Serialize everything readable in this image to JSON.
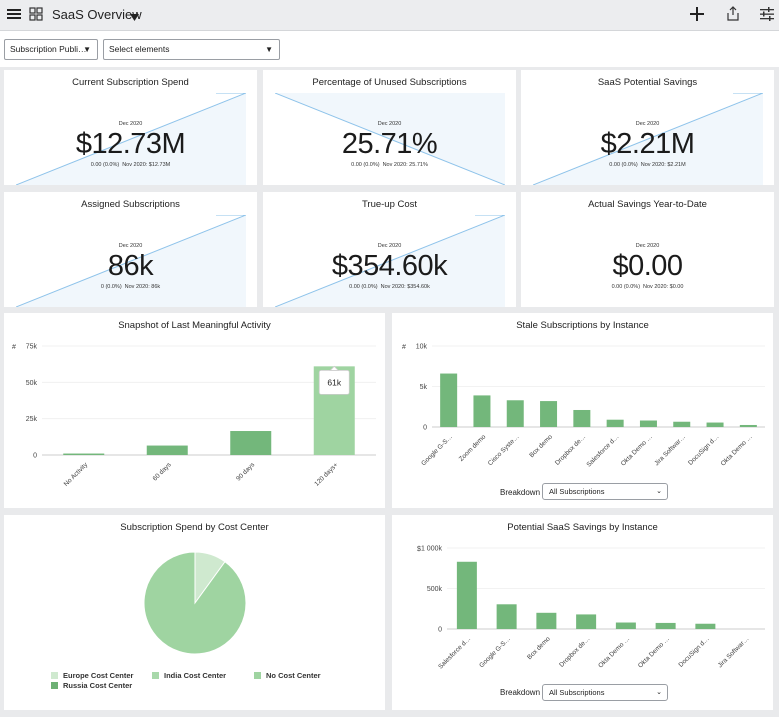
{
  "header": {
    "title": "SaaS Overview",
    "icons": [
      "hamburger-icon",
      "grid-icon",
      "chevron-down-icon",
      "plus-icon",
      "share-icon",
      "filter-sliders-icon"
    ]
  },
  "filters": {
    "subscription": {
      "value": "Subscription Publi…"
    },
    "elements": {
      "value": "Select elements"
    }
  },
  "kpis": [
    {
      "title": "Current Subscription Spend",
      "period": "Dec 2020",
      "value": "$12.73M",
      "delta": "0.00 (0.0%)",
      "prev": "Nov 2020: $12.73M"
    },
    {
      "title": "Percentage of Unused Subscriptions",
      "period": "Dec 2020",
      "value": "25.71%",
      "delta": "0.00 (0.0%)",
      "prev": "Nov 2020: 25.71%"
    },
    {
      "title": "SaaS Potential Savings",
      "period": "Dec 2020",
      "value": "$2.21M",
      "delta": "0.00 (0.0%)",
      "prev": "Nov 2020: $2.21M"
    },
    {
      "title": "Assigned Subscriptions",
      "period": "Dec 2020",
      "value": "86k",
      "delta": "0 (0.0%)",
      "prev": "Nov 2020: 86k"
    },
    {
      "title": "True-up Cost",
      "period": "Dec 2020",
      "value": "$354.60k",
      "delta": "0.00 (0.0%)",
      "prev": "Nov 2020: $354.60k"
    },
    {
      "title": "Actual Savings Year-to-Date",
      "period": "Dec 2020",
      "value": "$0.00",
      "delta": "0.00 (0.0%)",
      "prev": "Nov 2020: $0.00"
    }
  ],
  "charts": {
    "activity": {
      "title": "Snapshot of Last Meaningful Activity",
      "unit": "#",
      "tooltip": "61k"
    },
    "stale": {
      "title": "Stale Subscriptions by Instance",
      "unit": "#",
      "breakdown_label": "Breakdown",
      "breakdown_value": "All Subscriptions"
    },
    "cost_center": {
      "title": "Subscription Spend by Cost Center"
    },
    "savings": {
      "title": "Potential SaaS Savings by Instance",
      "unit": "$",
      "breakdown_label": "Breakdown",
      "breakdown_value": "All Subscriptions"
    }
  },
  "chart_data": [
    {
      "type": "bar",
      "title": "Snapshot of Last Meaningful Activity",
      "categories": [
        "No Activity",
        "60 days",
        "90 days",
        "120 days+"
      ],
      "values": [
        1000,
        6500,
        16500,
        61000
      ],
      "ylim": [
        0,
        75000
      ],
      "yticks": [
        "0",
        "25k",
        "50k",
        "75k"
      ],
      "ylabel": "#",
      "highlight_index": 3,
      "colors": [
        "#73b77b",
        "#73b77b",
        "#73b77b",
        "#9fd4a1"
      ]
    },
    {
      "type": "bar",
      "title": "Stale Subscriptions by Instance",
      "categories": [
        "Google G-S…",
        "Zoom demo",
        "Cisco Syste…",
        "Box demo",
        "Dropbox de…",
        "Salesforce d…",
        "Okta Demo …",
        "Jira Softwar…",
        "DocuSign d…",
        "Okta Demo …"
      ],
      "values": [
        6600,
        3900,
        3300,
        3200,
        2100,
        900,
        800,
        650,
        550,
        250
      ],
      "ylim": [
        0,
        10000
      ],
      "yticks": [
        "0",
        "5k",
        "10k"
      ],
      "ylabel": "#",
      "color": "#73b77b"
    },
    {
      "type": "pie",
      "title": "Subscription Spend by Cost Center",
      "labels": [
        "Europe Cost Center",
        "India Cost Center",
        "No Cost Center",
        "Russia Cost Center"
      ],
      "values": [
        0.1,
        0.0,
        0.9,
        0.0
      ],
      "colors": [
        "#cfe9cf",
        "#a8d8aa",
        "#9fd4a1",
        "#6db074"
      ]
    },
    {
      "type": "bar",
      "title": "Potential SaaS Savings by Instance",
      "categories": [
        "Salesforce d…",
        "Google G-S…",
        "Box demo",
        "Dropbox de…",
        "Okta Demo …",
        "Okta Demo …",
        "DocuSign d…",
        "Jira Softwar…"
      ],
      "values": [
        830000,
        305000,
        200000,
        180000,
        80000,
        75000,
        65000,
        0
      ],
      "ylim": [
        0,
        1000000
      ],
      "yticks": [
        "0",
        "500k",
        "1 000k"
      ],
      "ylabel": "$",
      "color": "#73b77b"
    }
  ]
}
